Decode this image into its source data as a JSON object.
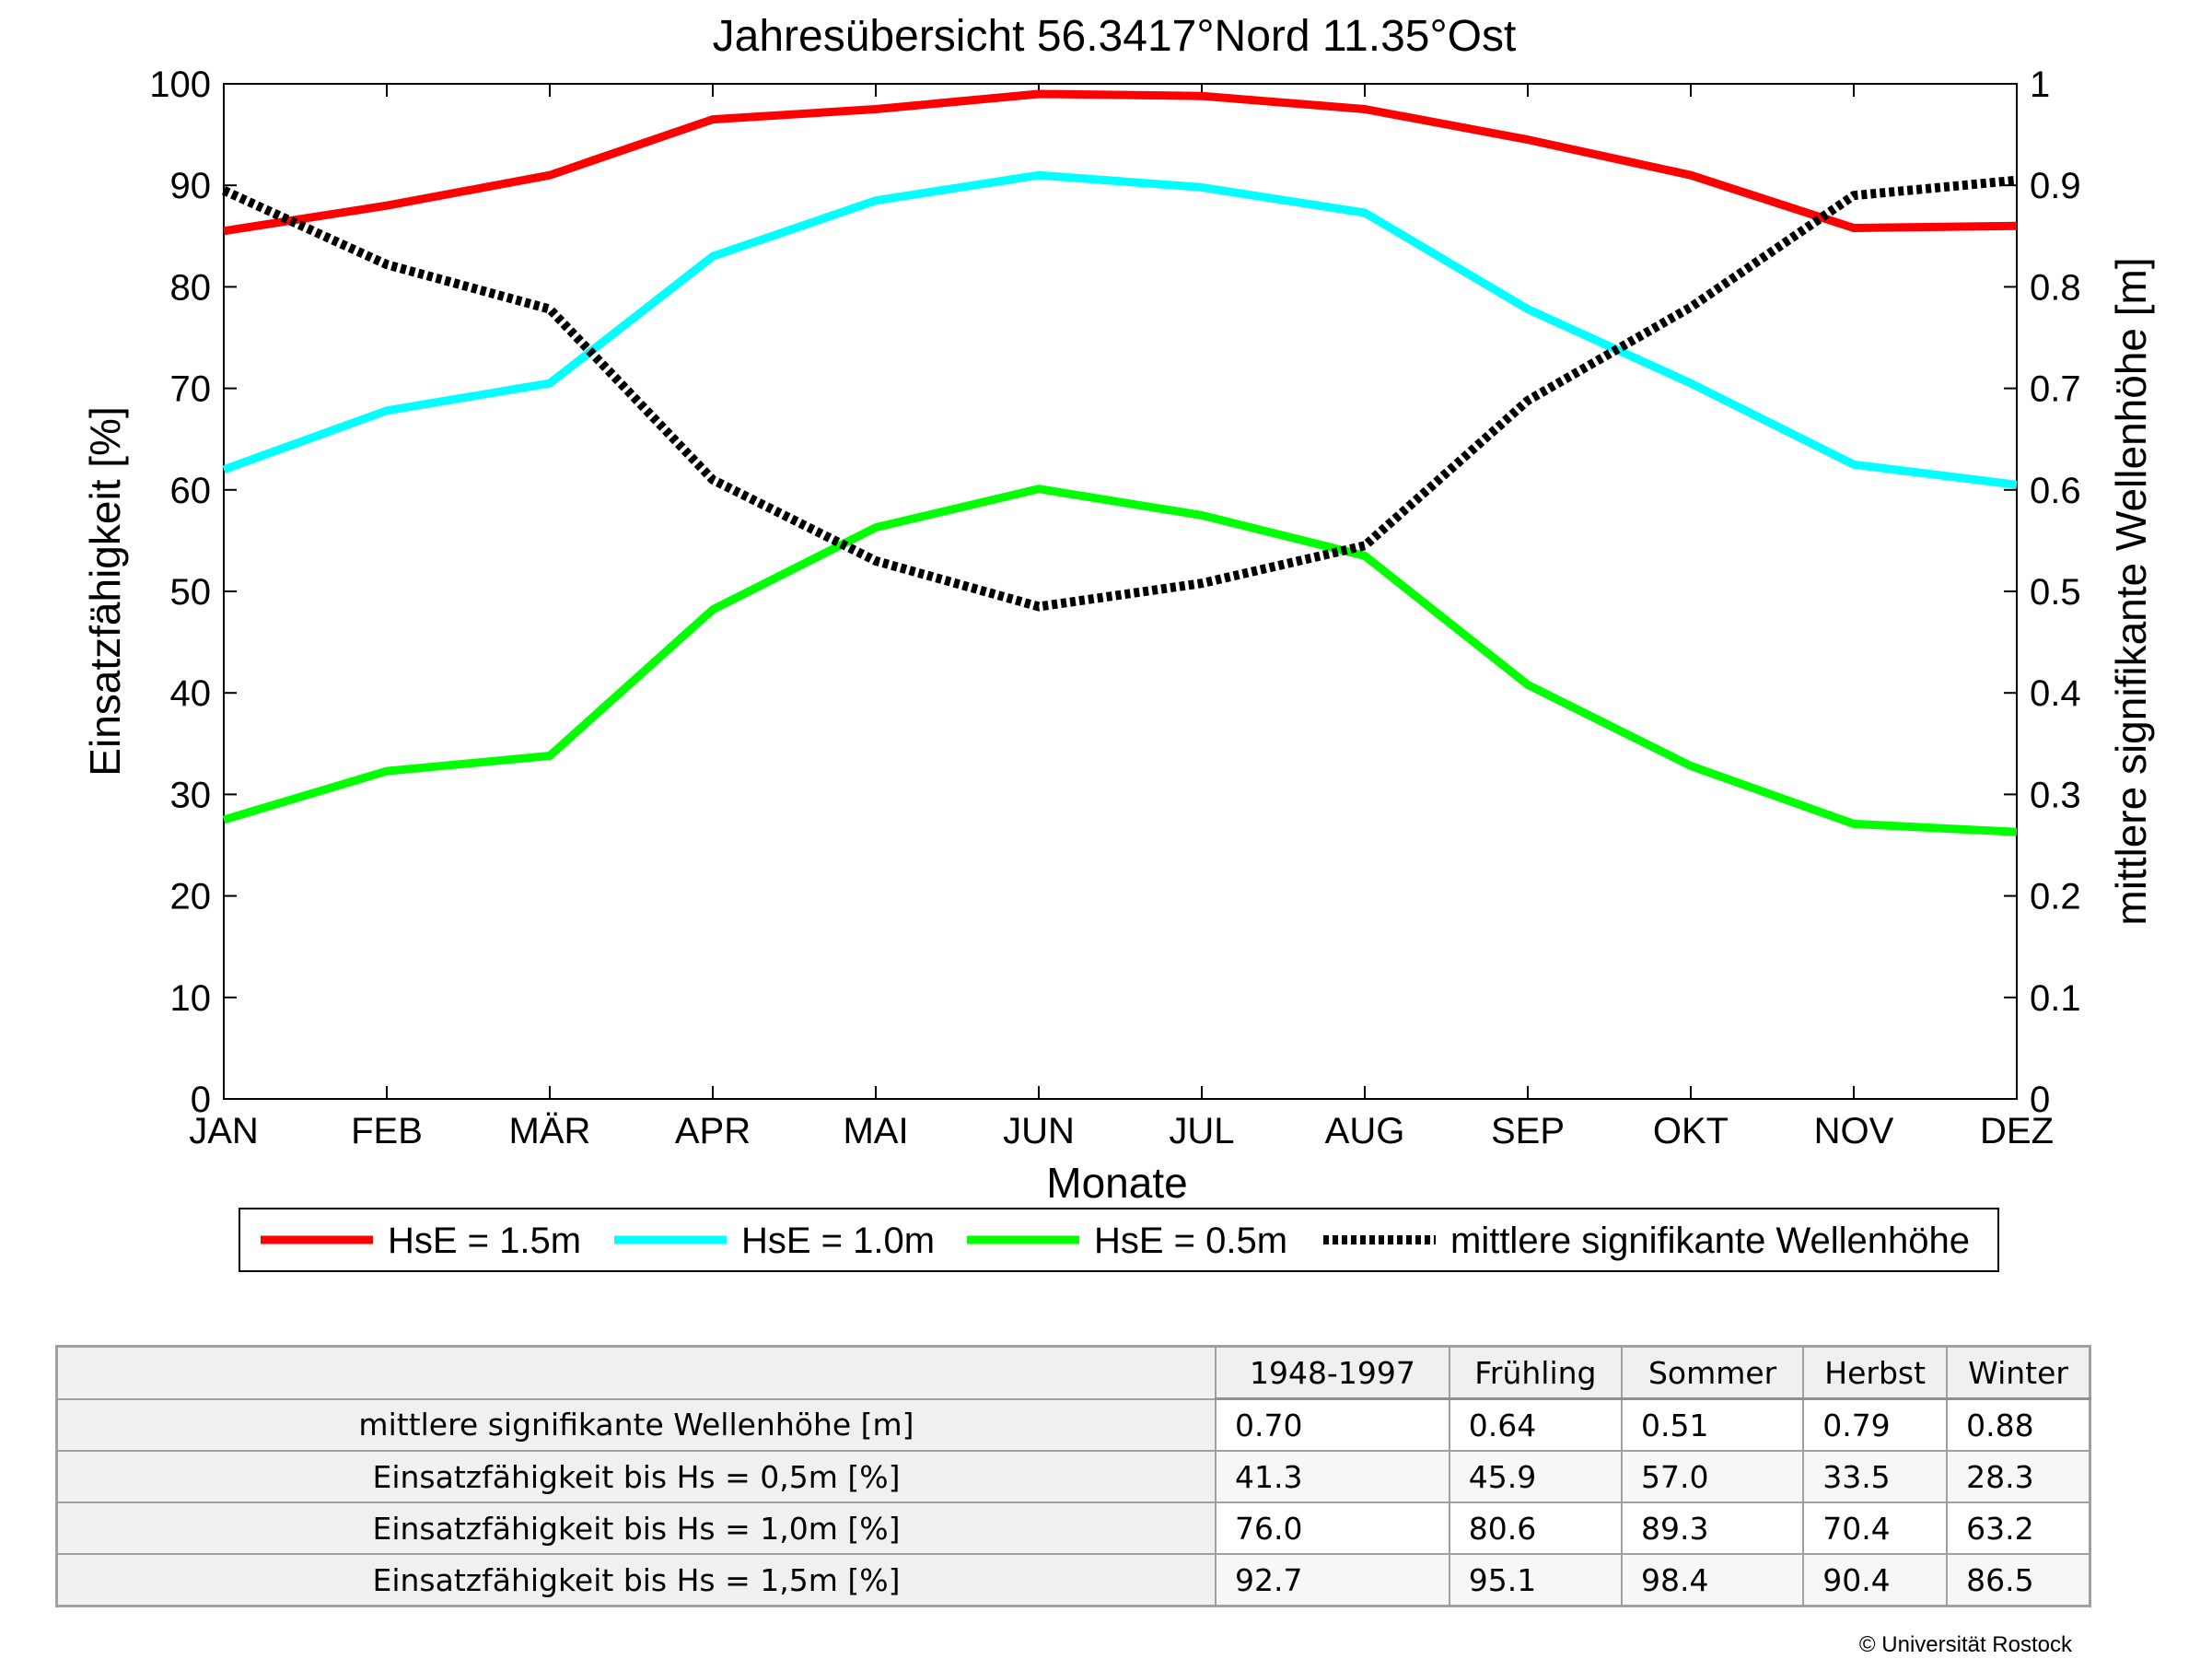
{
  "chart_data": {
    "type": "line",
    "title": "Jahresübersicht  56.3417°Nord  11.35°Ost",
    "xlabel": "Monate",
    "ylabel": "Einsatzfähigkeit [%]",
    "y2label": "mittlere signifikante Wellenhöhe [m]",
    "categories": [
      "JAN",
      "FEB",
      "MÄR",
      "APR",
      "MAI",
      "JUN",
      "JUL",
      "AUG",
      "SEP",
      "OKT",
      "NOV",
      "DEZ"
    ],
    "ylim": [
      0,
      100
    ],
    "y2lim": [
      0,
      1
    ],
    "yticks": [
      "0",
      "10",
      "20",
      "30",
      "40",
      "50",
      "60",
      "70",
      "80",
      "90",
      "100"
    ],
    "y2ticks": [
      "0",
      "0.1",
      "0.2",
      "0.3",
      "0.4",
      "0.5",
      "0.6",
      "0.7",
      "0.8",
      "0.9",
      "1"
    ],
    "grid": false,
    "legend_position": "bottom",
    "series": [
      {
        "name": "HsE = 1.5m",
        "axis": "left",
        "color": "#ff0000",
        "style": "solid",
        "values": [
          85.5,
          88,
          91,
          96.5,
          97.5,
          99,
          98.8,
          97.5,
          94.5,
          91,
          85.8,
          86
        ]
      },
      {
        "name": "HsE = 1.0m",
        "axis": "left",
        "color": "#00ffff",
        "style": "solid",
        "values": [
          62,
          67.8,
          70.5,
          83,
          88.5,
          91,
          89.8,
          87.3,
          77.8,
          70.5,
          62.5,
          60.5
        ]
      },
      {
        "name": "HsE = 0.5m",
        "axis": "left",
        "color": "#00ff00",
        "style": "solid",
        "values": [
          27.5,
          32.3,
          33.8,
          48.2,
          56.3,
          60.1,
          57.5,
          53.5,
          40.8,
          32.8,
          27.1,
          26.3
        ]
      },
      {
        "name": "mittlere signifikante Wellenhöhe",
        "axis": "right",
        "color": "#000000",
        "style": "dotted",
        "values": [
          0.895,
          0.822,
          0.778,
          0.61,
          0.53,
          0.485,
          0.508,
          0.545,
          0.688,
          0.78,
          0.89,
          0.905
        ]
      }
    ]
  },
  "table": {
    "headers": [
      "1948-1997",
      "Frühling",
      "Sommer",
      "Herbst",
      "Winter"
    ],
    "rows": [
      {
        "label": "mittlere signifikante Wellenhöhe [m]",
        "values": [
          "0.70",
          "0.64",
          "0.51",
          "0.79",
          "0.88"
        ]
      },
      {
        "label": "Einsatzfähigkeit bis Hs = 0,5m [%]",
        "values": [
          "41.3",
          "45.9",
          "57.0",
          "33.5",
          "28.3"
        ]
      },
      {
        "label": "Einsatzfähigkeit bis Hs = 1,0m [%]",
        "values": [
          "76.0",
          "80.6",
          "89.3",
          "70.4",
          "63.2"
        ]
      },
      {
        "label": "Einsatzfähigkeit bis Hs = 1,5m [%]",
        "values": [
          "92.7",
          "95.1",
          "98.4",
          "90.4",
          "86.5"
        ]
      }
    ]
  },
  "footer": {
    "copyright": "© Universität Rostock"
  }
}
